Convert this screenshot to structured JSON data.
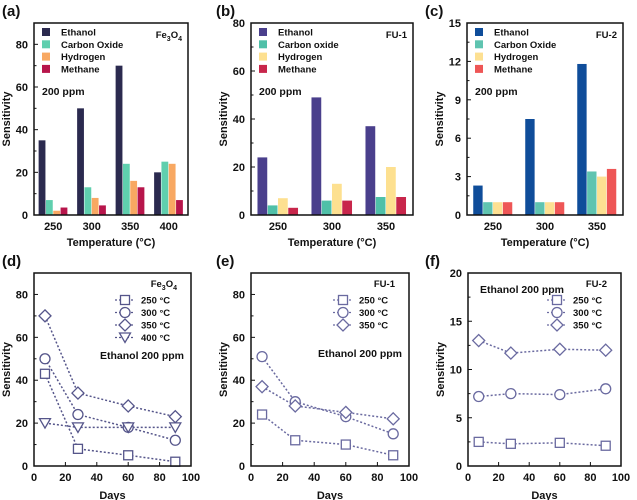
{
  "chart_data": [
    {
      "panel": "(a)",
      "type": "bar",
      "material": {
        "base": "Fe",
        "sub1": "3",
        "mid": "O",
        "sub2": "4"
      },
      "note": "200 ppm",
      "categories": [
        "250",
        "300",
        "350",
        "400"
      ],
      "xlabel": "Temperature (°C)",
      "ylabel": "Sensitivity",
      "ylim": [
        0,
        90
      ],
      "yticks": [
        "0",
        "20",
        "40",
        "60",
        "80"
      ],
      "series": [
        {
          "name": "Ethanol",
          "color": "#2b2a4f",
          "values": [
            35,
            50,
            70,
            20
          ]
        },
        {
          "name": "Carbon Oxide",
          "color": "#5fcfae",
          "values": [
            7,
            13,
            24,
            25
          ]
        },
        {
          "name": "Hydrogen",
          "color": "#f8a862",
          "values": [
            2,
            8,
            16,
            24
          ]
        },
        {
          "name": "Methane",
          "color": "#b7154b",
          "values": [
            3.5,
            4.5,
            13,
            7
          ]
        }
      ]
    },
    {
      "panel": "(b)",
      "type": "bar",
      "material": {
        "base": "FU-1"
      },
      "note": "200 ppm",
      "categories": [
        "250",
        "300",
        "350"
      ],
      "xlabel": "Temperature (°C)",
      "ylabel": "Sensitivity",
      "ylim": [
        0,
        80
      ],
      "yticks": [
        "0",
        "20",
        "40",
        "60",
        "80"
      ],
      "series": [
        {
          "name": "Ethanol",
          "color": "#4a3f8c",
          "values": [
            24,
            49,
            37
          ]
        },
        {
          "name": "Carbon oxide",
          "color": "#4fc0a8",
          "values": [
            4,
            6,
            7.5
          ]
        },
        {
          "name": "Hydrogen",
          "color": "#fde090",
          "values": [
            7,
            13,
            20
          ]
        },
        {
          "name": "Methane",
          "color": "#c8264b",
          "values": [
            3,
            6,
            7.5
          ]
        }
      ]
    },
    {
      "panel": "(c)",
      "type": "bar",
      "material": {
        "base": "FU-2"
      },
      "note": "200 ppm",
      "categories": [
        "250",
        "300",
        "350"
      ],
      "xlabel": "Temperature (°C)",
      "ylabel": "Sensitivity",
      "ylim": [
        0,
        15
      ],
      "yticks": [
        "0",
        "3",
        "6",
        "9",
        "12",
        "15"
      ],
      "series": [
        {
          "name": "Ethanol",
          "color": "#0f4d9a",
          "values": [
            2.3,
            7.5,
            11.8
          ]
        },
        {
          "name": "Carbon Oxide",
          "color": "#5fc4b0",
          "values": [
            1,
            1,
            3.4
          ]
        },
        {
          "name": "Hydrogen",
          "color": "#fde092",
          "values": [
            1,
            1,
            3
          ]
        },
        {
          "name": "Methane",
          "color": "#ee5656",
          "values": [
            1,
            1,
            3.6
          ]
        }
      ]
    },
    {
      "panel": "(d)",
      "type": "line",
      "material": {
        "base": "Fe",
        "sub1": "3",
        "mid": "O",
        "sub2": "4"
      },
      "note": "Ethanol 200 ppm",
      "x": [
        7,
        28,
        60,
        90
      ],
      "xlabel": "Days",
      "ylabel": "Sensitivity",
      "xlim": [
        0,
        100
      ],
      "ylim": [
        0,
        90
      ],
      "xticks": [
        "0",
        "20",
        "40",
        "60",
        "80",
        "100"
      ],
      "yticks": [
        "0",
        "20",
        "40",
        "60",
        "80"
      ],
      "color": "#55558a",
      "series": [
        {
          "name": "250 °C",
          "marker": "square",
          "values": [
            43,
            8,
            5,
            2
          ]
        },
        {
          "name": "300 °C",
          "marker": "circle",
          "values": [
            50,
            24,
            18,
            12
          ]
        },
        {
          "name": "350 °C",
          "marker": "diamond",
          "values": [
            70,
            34,
            28,
            23
          ]
        },
        {
          "name": "400 °C",
          "marker": "triangle-down",
          "values": [
            20,
            18,
            18,
            18
          ]
        }
      ]
    },
    {
      "panel": "(e)",
      "type": "line",
      "material": {
        "base": "FU-1"
      },
      "note": "Ethanol 200 ppm",
      "x": [
        7,
        28,
        60,
        90
      ],
      "xlabel": "Days",
      "ylabel": "Sensitivity",
      "xlim": [
        0,
        100
      ],
      "ylim": [
        0,
        90
      ],
      "xticks": [
        "0",
        "20",
        "40",
        "60",
        "80",
        "100"
      ],
      "yticks": [
        "0",
        "20",
        "40",
        "60",
        "80"
      ],
      "color": "#6a6aa0",
      "series": [
        {
          "name": "250 °C",
          "marker": "square",
          "values": [
            24,
            12,
            10,
            5
          ]
        },
        {
          "name": "300 °C",
          "marker": "circle",
          "values": [
            51,
            30,
            23,
            15
          ]
        },
        {
          "name": "350 °C",
          "marker": "diamond",
          "values": [
            37,
            28,
            25,
            22
          ]
        }
      ]
    },
    {
      "panel": "(f)",
      "type": "line",
      "material": {
        "base": "FU-2"
      },
      "note": "Ethanol 200 ppm",
      "x": [
        7,
        28,
        60,
        90
      ],
      "xlabel": "Days",
      "ylabel": "Sensitivity",
      "xlim": [
        0,
        100
      ],
      "ylim": [
        0,
        20
      ],
      "xticks": [
        "0",
        "20",
        "40",
        "60",
        "80",
        "100"
      ],
      "yticks": [
        "0",
        "5",
        "10",
        "15",
        "20"
      ],
      "color": "#6a6aa0",
      "series": [
        {
          "name": "250 °C",
          "marker": "square",
          "values": [
            2.5,
            2.3,
            2.4,
            2.1
          ]
        },
        {
          "name": "300 °C",
          "marker": "circle",
          "values": [
            7.2,
            7.5,
            7.4,
            8
          ]
        },
        {
          "name": "350 °C",
          "marker": "diamond",
          "values": [
            13,
            11.7,
            12.1,
            12
          ]
        }
      ]
    }
  ]
}
